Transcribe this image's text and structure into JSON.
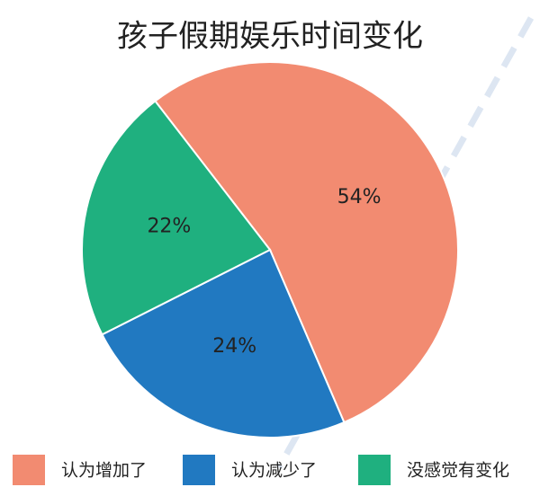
{
  "chart_data": {
    "type": "pie",
    "title": "孩子假期娱乐时间变化",
    "categories": [
      "认为增加了",
      "认为减少了",
      "没感觉有变化"
    ],
    "values": [
      54,
      24,
      22
    ],
    "value_labels": [
      "54%",
      "24%",
      "22%"
    ],
    "colors": [
      "#f28b71",
      "#2179c1",
      "#1fb07f"
    ]
  }
}
